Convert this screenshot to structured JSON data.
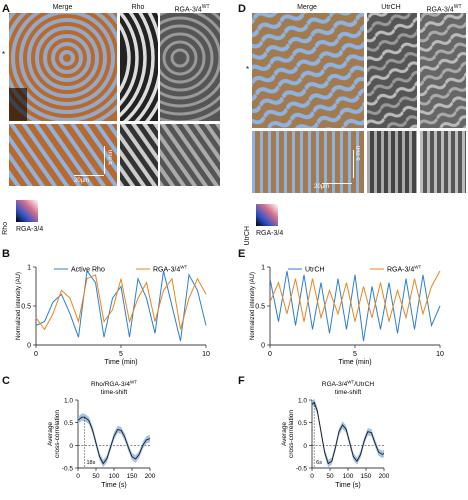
{
  "panels": {
    "A": {
      "label": "A",
      "titles": [
        "Merge",
        "Rho",
        "RGA-3/4"
      ],
      "wt_sup": "WT",
      "star": "*",
      "scale_time": "5 min",
      "scale_space": "20µm",
      "cbar_y": "Rho",
      "cbar_x": "RGA-3/4"
    },
    "B": {
      "label": "B",
      "legend": [
        "Active Rho",
        "RGA-3/4"
      ],
      "wt_sup": "WT",
      "ylabel": "Normalized intensity (AU)",
      "xlabel": "Time (min)",
      "yticks": [
        "0",
        "0.5",
        "1"
      ],
      "xticks": [
        "0",
        "5",
        "10"
      ]
    },
    "C": {
      "label": "C",
      "title1": "Rho/RGA-3/4",
      "wt_sup": "WT",
      "title2": "time-shift",
      "ylabel1": "Average",
      "ylabel2": "cross-correlation",
      "xlabel": "Time (s)",
      "yticks": [
        "-0.5",
        "0",
        "0.5",
        "1.0"
      ],
      "xticks": [
        "0",
        "50",
        "100",
        "150",
        "200"
      ],
      "annot": "18s"
    },
    "D": {
      "label": "D",
      "titles": [
        "Merge",
        "UtrCH",
        "RGA-3/4"
      ],
      "wt_sup": "WT",
      "star": "*",
      "scale_time": "5 min",
      "scale_space": "20µm",
      "cbar_y": "UtrCH",
      "cbar_x": "RGA-3/4"
    },
    "E": {
      "label": "E",
      "legend": [
        "UtrCH",
        "RGA-3/4"
      ],
      "wt_sup": "WT",
      "ylabel": "Normalized intensity (AU)",
      "xlabel": "Time (min)",
      "yticks": [
        "0",
        "0.5",
        "1"
      ],
      "xticks": [
        "0",
        "5",
        "10"
      ]
    },
    "F": {
      "label": "F",
      "title1": "RGA-3/4",
      "wt_sup": "WT",
      "title1b": "/UtrCH",
      "title2": "time-shift",
      "ylabel1": "Average",
      "ylabel2": "cross-correlation",
      "xlabel": "Time (s)",
      "yticks": [
        "-0.5",
        "0",
        "0.5",
        "1.0"
      ],
      "xticks": [
        "0",
        "50",
        "100",
        "150",
        "200"
      ],
      "annot": "6s"
    }
  },
  "colors": {
    "blue": "#2a7fd4",
    "orange": "#e8861c",
    "band": "#8fb4e0",
    "merge_orange": "#b86a2e",
    "merge_blue": "#8fb3e0"
  },
  "chart_data": [
    {
      "id": "B",
      "type": "line",
      "xlim": [
        0,
        10
      ],
      "ylim": [
        0,
        1
      ],
      "series": [
        {
          "name": "Active Rho",
          "x": [
            0,
            0.5,
            1,
            1.5,
            2,
            2.5,
            3,
            3.5,
            4,
            4.5,
            5,
            5.5,
            6,
            6.5,
            7,
            7.5,
            8,
            8.5,
            9,
            9.5,
            10
          ],
          "y": [
            0.25,
            0.3,
            0.55,
            0.65,
            0.4,
            0.1,
            0.95,
            0.8,
            0.1,
            0.6,
            0.75,
            0.1,
            0.85,
            0.6,
            0.15,
            0.95,
            0.5,
            0.05,
            0.9,
            0.7,
            0.25
          ]
        },
        {
          "name": "RGA-3/4",
          "x": [
            0,
            0.5,
            1,
            1.5,
            2,
            2.5,
            3,
            3.5,
            4,
            4.5,
            5,
            5.5,
            6,
            6.5,
            7,
            7.5,
            8,
            8.5,
            9,
            9.5,
            10
          ],
          "y": [
            0.35,
            0.2,
            0.4,
            0.7,
            0.6,
            0.3,
            0.85,
            0.9,
            0.3,
            0.45,
            0.85,
            0.3,
            0.6,
            0.8,
            0.3,
            0.7,
            0.85,
            0.2,
            0.6,
            0.85,
            0.65
          ]
        }
      ]
    },
    {
      "id": "E",
      "type": "line",
      "xlim": [
        0,
        10
      ],
      "ylim": [
        0,
        1
      ],
      "series": [
        {
          "name": "UtrCH",
          "x": [
            0,
            0.5,
            1,
            1.5,
            2,
            2.5,
            3,
            3.5,
            4,
            4.5,
            5,
            5.5,
            6,
            6.5,
            7,
            7.5,
            8,
            8.5,
            9,
            9.5,
            10
          ],
          "y": [
            0.85,
            0.3,
            0.95,
            0.25,
            0.9,
            0.2,
            0.8,
            0.15,
            0.85,
            0.2,
            0.9,
            0.05,
            0.75,
            0.2,
            0.8,
            0.15,
            0.85,
            0.2,
            0.9,
            0.25,
            0.5
          ]
        },
        {
          "name": "RGA-3/4",
          "x": [
            0,
            0.5,
            1,
            1.5,
            2,
            2.5,
            3,
            3.5,
            4,
            4.5,
            5,
            5.5,
            6,
            6.5,
            7,
            7.5,
            8,
            8.5,
            9,
            9.5,
            10
          ],
          "y": [
            0.55,
            0.8,
            0.4,
            0.85,
            0.3,
            0.85,
            0.35,
            0.7,
            0.4,
            0.8,
            0.3,
            0.75,
            0.35,
            0.8,
            0.3,
            0.7,
            0.35,
            0.85,
            0.4,
            0.75,
            0.95
          ]
        }
      ]
    },
    {
      "id": "C",
      "type": "line",
      "xlim": [
        0,
        200
      ],
      "ylim": [
        -0.5,
        1.0
      ],
      "series": [
        {
          "name": "",
          "x": [
            0,
            10,
            18,
            30,
            40,
            50,
            60,
            70,
            80,
            90,
            100,
            110,
            120,
            130,
            140,
            150,
            160,
            170,
            180,
            190,
            200
          ],
          "y": [
            0.55,
            0.62,
            0.62,
            0.55,
            0.35,
            0.05,
            -0.25,
            -0.4,
            -0.3,
            -0.05,
            0.2,
            0.35,
            0.33,
            0.18,
            -0.05,
            -0.25,
            -0.3,
            -0.2,
            0.0,
            0.12,
            0.15
          ]
        }
      ]
    },
    {
      "id": "F",
      "type": "line",
      "xlim": [
        0,
        200
      ],
      "ylim": [
        -0.5,
        1.0
      ],
      "series": [
        {
          "name": "",
          "x": [
            0,
            6,
            15,
            25,
            35,
            45,
            55,
            65,
            75,
            85,
            95,
            105,
            115,
            125,
            135,
            145,
            155,
            165,
            175,
            185,
            195,
            200
          ],
          "y": [
            0.9,
            0.95,
            0.75,
            0.3,
            -0.15,
            -0.4,
            -0.35,
            -0.05,
            0.3,
            0.45,
            0.35,
            0.05,
            -0.25,
            -0.35,
            -0.2,
            0.1,
            0.3,
            0.28,
            0.05,
            -0.15,
            -0.2,
            -0.18
          ]
        }
      ]
    }
  ]
}
